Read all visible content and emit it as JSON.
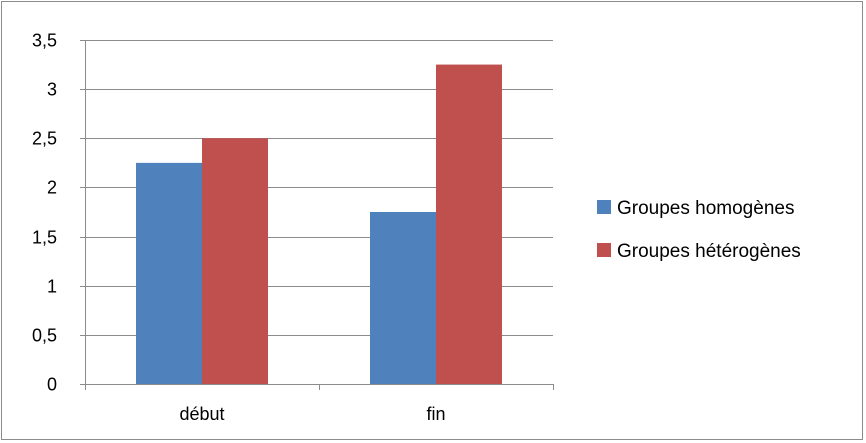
{
  "chart_data": {
    "type": "bar",
    "title": "",
    "xlabel": "",
    "ylabel": "",
    "categories": [
      "début",
      "fin"
    ],
    "series": [
      {
        "name": "Groupes homogènes",
        "color": "#4f81bd",
        "values": [
          2.25,
          1.75
        ]
      },
      {
        "name": "Groupes hétérogènes",
        "color": "#c0504d",
        "values": [
          2.5,
          3.25
        ]
      }
    ],
    "ylim": [
      0,
      3.5
    ],
    "yticks": [
      0,
      0.5,
      1,
      1.5,
      2,
      2.5,
      3,
      3.5
    ],
    "ytick_labels": [
      "0",
      "0,5",
      "1",
      "1,5",
      "2",
      "2,5",
      "3",
      "3,5"
    ],
    "grid": true,
    "legend": "right"
  }
}
